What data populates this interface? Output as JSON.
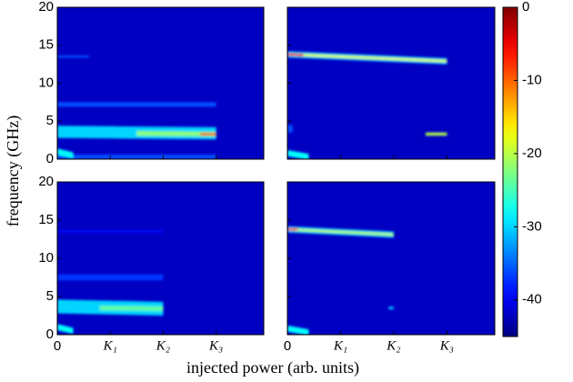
{
  "figure": {
    "ylabel": "frequency (GHz)",
    "xlabel": "injected power (arb. units)",
    "colorbar": {
      "lim": [
        -45,
        0
      ],
      "ticks": [
        0,
        -10,
        -20,
        -30,
        -40
      ],
      "colormap": "jet"
    }
  },
  "chart_data": [
    {
      "type": "heatmap",
      "xlim": [
        0,
        3.9
      ],
      "ylim": [
        0,
        20
      ],
      "xticks": [
        0,
        1,
        2,
        3
      ],
      "yticks": [
        0,
        5,
        10,
        15,
        20
      ],
      "xtick_labels": false,
      "ytick_labels": true,
      "background": -42,
      "traces": [
        {
          "x0": 0,
          "x1": 3.0,
          "f0": 0.3,
          "f1": 0.3,
          "width": 0.6,
          "level": -36
        },
        {
          "x0": 0,
          "x1": 3.0,
          "f0": 7.2,
          "f1": 7.2,
          "width": 0.6,
          "level": -36
        },
        {
          "x0": 0,
          "x1": 0.6,
          "f0": 13.5,
          "f1": 13.5,
          "width": 0.3,
          "level": -36
        },
        {
          "x0": 0,
          "x1": 3.0,
          "f0": 3.6,
          "f1": 3.4,
          "width": 1.6,
          "level": -30
        },
        {
          "x0": 0,
          "x1": 0.3,
          "f0": 1,
          "f1": 0.5,
          "width": 0.8,
          "level": -28
        },
        {
          "x0": 1.5,
          "x1": 3.0,
          "f0": 3.4,
          "f1": 3.3,
          "width": 0.6,
          "level": -22
        },
        {
          "x0": 2.7,
          "x1": 3.0,
          "f0": 3.3,
          "f1": 3.3,
          "width": 0.3,
          "level": -8
        }
      ]
    },
    {
      "type": "heatmap",
      "xlim": [
        0,
        3.9
      ],
      "ylim": [
        0,
        20
      ],
      "xticks": [
        0,
        1,
        2,
        3
      ],
      "yticks": [
        0,
        5,
        10,
        15,
        20
      ],
      "xtick_labels": false,
      "ytick_labels": false,
      "background": -42,
      "traces": [
        {
          "x0": 0,
          "x1": 0.1,
          "f0": 4,
          "f1": 4,
          "width": 1,
          "level": -36
        },
        {
          "x0": 0,
          "x1": 3.0,
          "f0": 13.8,
          "f1": 12.9,
          "width": 0.8,
          "level": -30
        },
        {
          "x0": 0,
          "x1": 0.4,
          "f0": 0.8,
          "f1": 0.3,
          "width": 0.8,
          "level": -28
        },
        {
          "x0": 2.6,
          "x1": 3.0,
          "f0": 3.3,
          "f1": 3.3,
          "width": 0.4,
          "level": -20
        },
        {
          "x0": 0,
          "x1": 3.0,
          "f0": 13.8,
          "f1": 12.9,
          "width": 0.3,
          "level": -18
        },
        {
          "x0": 0,
          "x1": 0.3,
          "f0": 13.8,
          "f1": 13.7,
          "width": 0.3,
          "level": -5
        }
      ]
    },
    {
      "type": "heatmap",
      "xlim": [
        0,
        3.9
      ],
      "ylim": [
        0,
        20
      ],
      "xticks": [
        0,
        {
          "value": 1,
          "label": "K₁"
        },
        {
          "value": 2,
          "label": "K₂"
        },
        {
          "value": 3,
          "label": "K₃"
        }
      ],
      "yticks": [
        0,
        5,
        10,
        15,
        20
      ],
      "xtick_labels": true,
      "ytick_labels": true,
      "background": -42,
      "traces": [
        {
          "x0": 0,
          "x1": 2.0,
          "f0": 13.5,
          "f1": 13.5,
          "width": 0.3,
          "level": -39
        },
        {
          "x0": 0,
          "x1": 2.0,
          "f0": 7.5,
          "f1": 7.5,
          "width": 0.8,
          "level": -37
        },
        {
          "x0": 0,
          "x1": 2.0,
          "f0": 3.7,
          "f1": 3.4,
          "width": 1.8,
          "level": -30
        },
        {
          "x0": 0,
          "x1": 0.3,
          "f0": 1,
          "f1": 0.5,
          "width": 0.8,
          "level": -28
        },
        {
          "x0": 0.8,
          "x1": 2.0,
          "f0": 3.5,
          "f1": 3.4,
          "width": 0.6,
          "level": -24
        }
      ]
    },
    {
      "type": "heatmap",
      "xlim": [
        0,
        3.9
      ],
      "ylim": [
        0,
        20
      ],
      "xticks": [
        0,
        {
          "value": 1,
          "label": "K₁"
        },
        {
          "value": 2,
          "label": "K₂"
        },
        {
          "value": 3,
          "label": "K₃"
        }
      ],
      "yticks": [
        0,
        5,
        10,
        15,
        20
      ],
      "xtick_labels": true,
      "ytick_labels": false,
      "background": -42,
      "traces": [
        {
          "x0": 1.9,
          "x1": 2.0,
          "f0": 3.5,
          "f1": 3.5,
          "width": 0.4,
          "level": -32
        },
        {
          "x0": 0,
          "x1": 2.0,
          "f0": 13.8,
          "f1": 13.1,
          "width": 0.8,
          "level": -30
        },
        {
          "x0": 0,
          "x1": 0.4,
          "f0": 0.8,
          "f1": 0.3,
          "width": 0.8,
          "level": -28
        },
        {
          "x0": 0,
          "x1": 2.0,
          "f0": 13.8,
          "f1": 13.1,
          "width": 0.3,
          "level": -20
        },
        {
          "x0": 0,
          "x1": 0.2,
          "f0": 13.8,
          "f1": 13.8,
          "width": 0.3,
          "level": -8
        }
      ]
    }
  ]
}
